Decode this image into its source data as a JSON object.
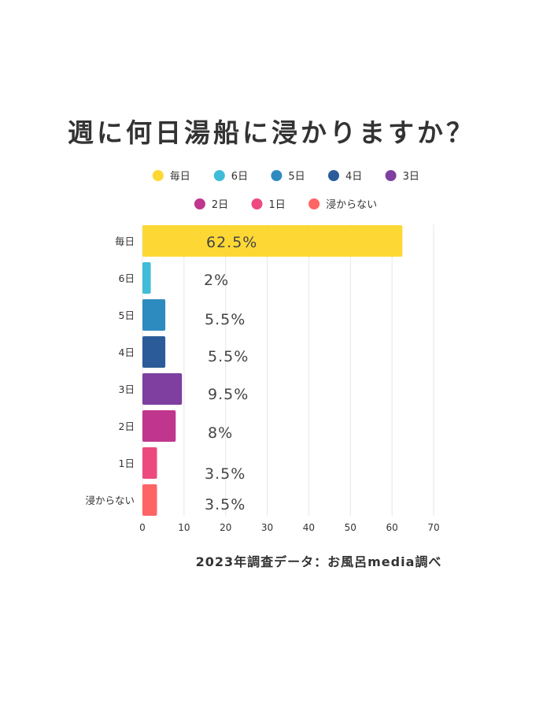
{
  "chart_data": {
    "type": "bar",
    "orientation": "horizontal",
    "title": "週に何日湯船に浸かりますか？",
    "categories": [
      "毎日",
      "6日",
      "5日",
      "4日",
      "3日",
      "2日",
      "1日",
      "浸からない"
    ],
    "values": [
      62.5,
      2,
      5.5,
      5.5,
      9.5,
      8,
      3.5,
      3.5
    ],
    "data_labels": [
      "62.5%",
      "2%",
      "5.5%",
      "5.5%",
      "9.5%",
      "8%",
      "3.5%",
      "3.5%"
    ],
    "colors": [
      "#FDD835",
      "#3EBCD8",
      "#2E8BC0",
      "#2B5C99",
      "#7E3FA0",
      "#C0368E",
      "#EC4A7F",
      "#FF6464"
    ],
    "xlim": [
      0,
      70
    ],
    "xticks": [
      0,
      10,
      20,
      30,
      40,
      50,
      60,
      70
    ],
    "grid": true,
    "legend_position": "top",
    "source": "2023年調査データ：お風呂media調べ"
  }
}
